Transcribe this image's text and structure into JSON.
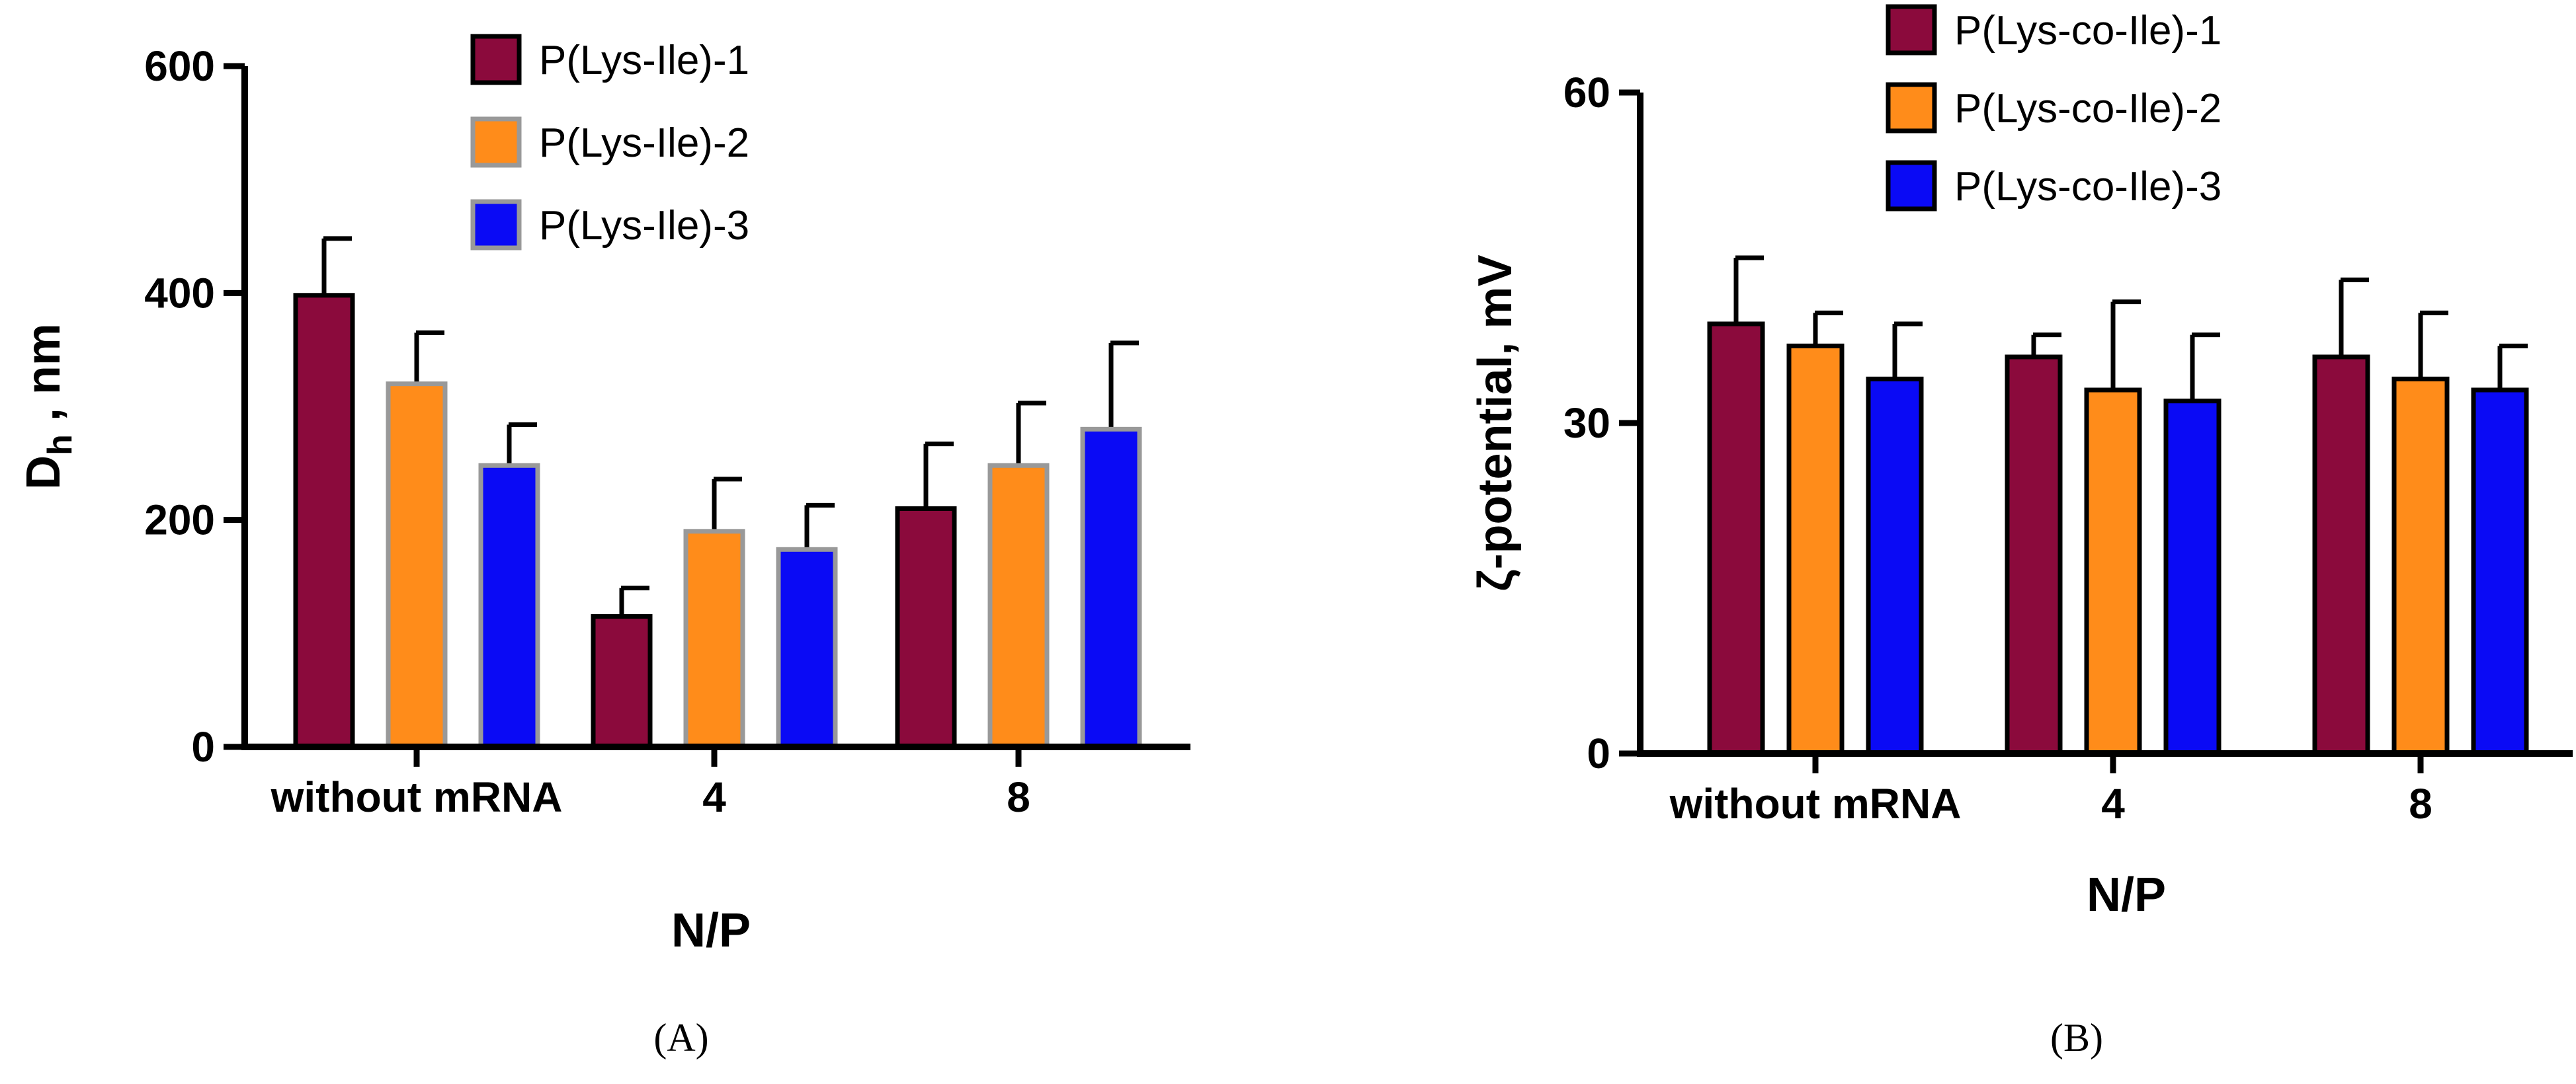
{
  "chart_data": [
    {
      "type": "bar",
      "panel_label": "(A)",
      "title": "",
      "xlabel": "N/P",
      "ylabel_main": "D",
      "ylabel_sub": "h",
      "ylabel_rest": " , nm",
      "ylim": [
        0,
        600
      ],
      "yticks": [
        "0",
        "200",
        "400",
        "600"
      ],
      "categories": [
        "without mRNA",
        "4",
        "8"
      ],
      "legend_position": "top-center",
      "series": [
        {
          "name": "P(Lys-Ile)-1",
          "color": "#8B0A3C",
          "values": [
            398,
            115,
            210
          ],
          "errors": [
            50,
            25,
            57
          ]
        },
        {
          "name": "P(Lys-Ile)-2",
          "color": "#FF8C1A",
          "values": [
            320,
            190,
            248
          ],
          "errors": [
            45,
            46,
            55
          ]
        },
        {
          "name": "P(Lys-Ile)-3",
          "color": "#0A0AF5",
          "values": [
            248,
            174,
            280
          ],
          "errors": [
            36,
            39,
            76
          ]
        }
      ]
    },
    {
      "type": "bar",
      "panel_label": "(B)",
      "title": "",
      "xlabel": "N/P",
      "ylabel": "ζ-potential, mV",
      "ylim": [
        0,
        60
      ],
      "yticks": [
        "0",
        "30",
        "60"
      ],
      "categories": [
        "without mRNA",
        "4",
        "8"
      ],
      "legend_position": "top-center",
      "series": [
        {
          "name": "P(Lys-co-Ile)-1",
          "color": "#8B0A3C",
          "values": [
            39,
            36,
            36
          ],
          "errors": [
            6,
            2,
            7
          ]
        },
        {
          "name": "P(Lys-co-Ile)-2",
          "color": "#FF8C1A",
          "values": [
            37,
            33,
            34
          ],
          "errors": [
            3,
            8,
            6
          ]
        },
        {
          "name": "P(Lys-co-Ile)-3",
          "color": "#0A0AF5",
          "values": [
            34,
            32,
            33
          ],
          "errors": [
            5,
            6,
            4
          ]
        }
      ]
    }
  ]
}
